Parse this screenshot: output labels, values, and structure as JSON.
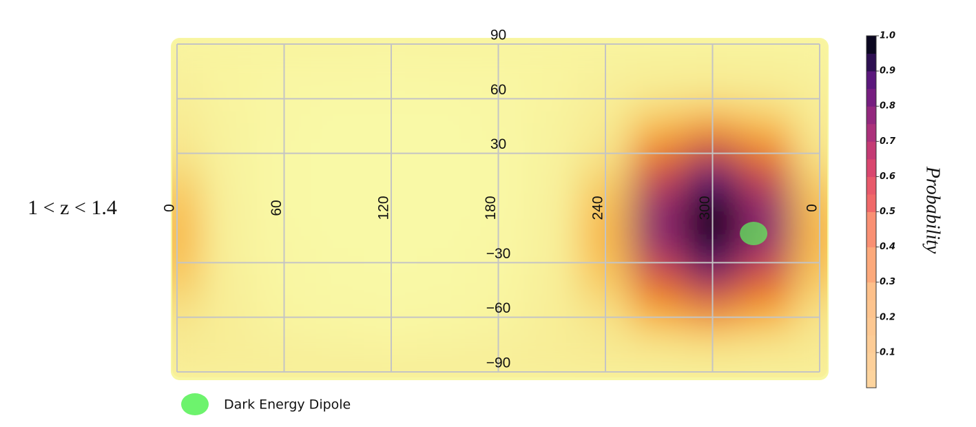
{
  "chart_data": {
    "type": "heatmap",
    "row_label": "1 < z < 1.4",
    "x": [
      0,
      30,
      60,
      90,
      120,
      150,
      180,
      210,
      240,
      270,
      300,
      330,
      360
    ],
    "y": [
      90,
      75,
      60,
      45,
      30,
      15,
      0,
      -15,
      -30,
      -45,
      -60,
      -75,
      -90
    ],
    "z": [
      [
        0.06,
        0.06,
        0.06,
        0.06,
        0.06,
        0.06,
        0.06,
        0.06,
        0.06,
        0.06,
        0.06,
        0.06,
        0.06
      ],
      [
        0.09,
        0.06,
        0.04,
        0.03,
        0.02,
        0.03,
        0.04,
        0.06,
        0.09,
        0.12,
        0.13,
        0.12,
        0.09
      ],
      [
        0.13,
        0.06,
        0.02,
        0.01,
        0.01,
        0.01,
        0.02,
        0.06,
        0.13,
        0.21,
        0.25,
        0.21,
        0.13
      ],
      [
        0.18,
        0.07,
        0.02,
        0,
        0,
        0,
        0.02,
        0.07,
        0.18,
        0.35,
        0.43,
        0.35,
        0.18
      ],
      [
        0.24,
        0.07,
        0.01,
        0,
        0,
        0,
        0.01,
        0.07,
        0.24,
        0.51,
        0.65,
        0.51,
        0.24
      ],
      [
        0.3,
        0.08,
        0.01,
        0,
        0,
        0,
        0.01,
        0.08,
        0.3,
        0.66,
        0.85,
        0.66,
        0.3
      ],
      [
        0.34,
        0.09,
        0.01,
        0,
        0,
        0,
        0.01,
        0.09,
        0.34,
        0.75,
        0.98,
        0.75,
        0.34
      ],
      [
        0.36,
        0.1,
        0.02,
        0,
        0,
        0,
        0.02,
        0.1,
        0.36,
        0.76,
        0.99,
        0.76,
        0.36
      ],
      [
        0.34,
        0.11,
        0.03,
        0.01,
        0,
        0.01,
        0.03,
        0.11,
        0.34,
        0.68,
        0.87,
        0.68,
        0.34
      ],
      [
        0.3,
        0.12,
        0.04,
        0.01,
        0.01,
        0.01,
        0.04,
        0.12,
        0.3,
        0.54,
        0.67,
        0.54,
        0.3
      ],
      [
        0.25,
        0.13,
        0.06,
        0.03,
        0.02,
        0.03,
        0.06,
        0.13,
        0.25,
        0.38,
        0.45,
        0.38,
        0.25
      ],
      [
        0.19,
        0.13,
        0.09,
        0.07,
        0.06,
        0.07,
        0.09,
        0.13,
        0.19,
        0.24,
        0.26,
        0.24,
        0.19
      ],
      [
        0.14,
        0.14,
        0.14,
        0.14,
        0.14,
        0.14,
        0.14,
        0.14,
        0.14,
        0.14,
        0.14,
        0.14,
        0.14
      ]
    ],
    "colorscale": [
      [
        0,
        "#f9f9a6"
      ],
      [
        0.25,
        "#f7e48a"
      ],
      [
        0.4,
        "#f8a830"
      ],
      [
        0.55,
        "#ea6a1e"
      ],
      [
        0.7,
        "#b3356b"
      ],
      [
        0.85,
        "#4e1278"
      ],
      [
        1,
        "#000004"
      ]
    ],
    "xlim": [
      0,
      360
    ],
    "ylim": [
      -90,
      90
    ],
    "xticks": [
      0,
      60,
      120,
      180,
      240,
      300,
      {
        "value": 360,
        "label": "0"
      }
    ],
    "yticks": [
      {
        "value": 90,
        "label": "90"
      },
      {
        "value": 60,
        "label": "60"
      },
      {
        "value": 30,
        "label": "30"
      },
      {
        "value": -30,
        "label": "−30"
      },
      {
        "value": -60,
        "label": "−60"
      },
      {
        "value": -90,
        "label": "−90"
      }
    ],
    "grid": true,
    "dipole": {
      "name": "Dark Energy Dipole",
      "lon": 323,
      "lat": -14,
      "color": "#5df25d"
    },
    "colorbar": {
      "label": "Probability",
      "lim": [
        0,
        1
      ],
      "ticks": [
        0.1,
        0.2,
        0.3,
        0.4,
        0.5,
        0.6,
        0.7,
        0.8,
        0.9,
        {
          "value": 1,
          "label": "1.0"
        }
      ],
      "colors": [
        "#fdd49e",
        "#fdd09a",
        "#fdcc96",
        "#fdc892",
        "#fdc48e",
        "#fdc08a",
        "#fca97b",
        "#fca97b",
        "#f99073",
        "#f99073",
        "#f06969",
        "#e85a6b",
        "#d9476f",
        "#c43b74",
        "#ab317b",
        "#93287e",
        "#761e80",
        "#5a177c",
        "#2d0f51",
        "#0b0720"
      ]
    }
  }
}
